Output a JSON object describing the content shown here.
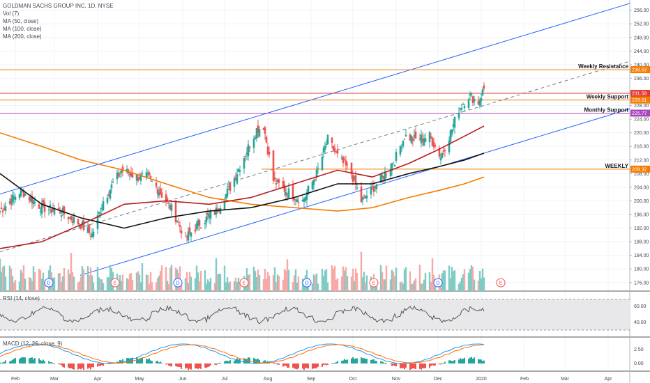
{
  "legend": {
    "title": "GOLDMAN SACHS GROUP INC, 1D, NYSE",
    "vol": "Vol (7)",
    "ma50": "MA (50, close)",
    "ma100": "MA (100, close)",
    "ma200": "MA (200, close)",
    "rsi": "RSI (14, close)",
    "macd": "MACD (12, 26, close, 9)"
  },
  "colors": {
    "up": "#26a69a",
    "down": "#ef5350",
    "up_vol": "#80cbc4",
    "down_vol": "#f7a9a7",
    "ma50": "#b71c1c",
    "ma100": "#111111",
    "ma200": "#f57c00",
    "channel": "#2962ff",
    "resistance": "#f57c00",
    "support": "#e53935",
    "monthly": "#ab47bc",
    "rsi": "#555555",
    "macd": "#2196f3",
    "signal": "#ff6d00"
  },
  "chart_data": {
    "type": "candlestick",
    "instrument": "GOLDMAN SACHS GROUP INC",
    "interval": "1D",
    "exchange": "NYSE",
    "price_axis": {
      "ticks": [
        "256.00",
        "252.00",
        "248.00",
        "244.00",
        "240.00",
        "236.00",
        "232.00",
        "228.00",
        "224.00",
        "220.00",
        "216.00",
        "212.00",
        "208.00",
        "204.00",
        "200.00",
        "196.00",
        "192.00",
        "188.00",
        "184.00",
        "180.00",
        "176.00"
      ],
      "range": [
        173.5,
        259
      ]
    },
    "time_axis": [
      "Feb",
      "Mar",
      "Apr",
      "May",
      "Jun",
      "Jul",
      "Aug",
      "Sep",
      "Oct",
      "Nov",
      "Dec",
      "2020",
      "Feb",
      "Mar",
      "Apr"
    ],
    "price_tags": [
      {
        "label": "238.53",
        "value": 238.53,
        "color": "#f57c00"
      },
      {
        "label": "231.58",
        "value": 231.58,
        "color": "#e53935"
      },
      {
        "label": "229.61",
        "value": 229.61,
        "color": "#f57c00"
      },
      {
        "label": "225.77",
        "value": 225.77,
        "color": "#ab47bc"
      },
      {
        "label": "209.32",
        "value": 209.32,
        "color": "#f57c00"
      }
    ],
    "annotations": [
      {
        "text": "Weekly Resistance",
        "value": 238.53
      },
      {
        "text": "Weekly Support",
        "value": 229.61
      },
      {
        "text": "Monthly Support",
        "value": 225.77
      },
      {
        "text": "WEEKLY",
        "value": 209.32
      }
    ],
    "events": [
      {
        "label": "D",
        "month": "Feb"
      },
      {
        "label": "E",
        "month": "Apr"
      },
      {
        "label": "D",
        "month": "May-Jun"
      },
      {
        "label": "E",
        "month": "Jul"
      },
      {
        "label": "D",
        "month": "Aug-Sep"
      },
      {
        "label": "E",
        "month": "Oct"
      },
      {
        "label": "D",
        "month": "Nov-Dec"
      },
      {
        "label": "E",
        "month": "Jan"
      }
    ],
    "rsi_axis": [
      "60.00",
      "40.00"
    ],
    "macd_axis": [
      "2.50",
      "0.00"
    ],
    "price_path": [
      [
        "2019-01-21",
        197
      ],
      [
        "2019-02-05",
        203
      ],
      [
        "2019-02-20",
        198
      ],
      [
        "2019-03-05",
        197
      ],
      [
        "2019-03-20",
        193
      ],
      [
        "2019-03-28",
        190
      ],
      [
        "2019-04-05",
        200
      ],
      [
        "2019-04-12",
        205
      ],
      [
        "2019-04-18",
        209
      ],
      [
        "2019-04-30",
        207
      ],
      [
        "2019-05-07",
        207
      ],
      [
        "2019-05-15",
        203
      ],
      [
        "2019-05-25",
        197
      ],
      [
        "2019-06-03",
        189
      ],
      [
        "2019-06-12",
        193
      ],
      [
        "2019-06-25",
        197
      ],
      [
        "2019-07-05",
        204
      ],
      [
        "2019-07-15",
        213
      ],
      [
        "2019-07-24",
        221
      ],
      [
        "2019-07-29",
        222
      ],
      [
        "2019-08-05",
        206
      ],
      [
        "2019-08-14",
        203
      ],
      [
        "2019-08-26",
        200
      ],
      [
        "2019-09-05",
        208
      ],
      [
        "2019-09-13",
        218
      ],
      [
        "2019-09-20",
        213
      ],
      [
        "2019-09-30",
        208
      ],
      [
        "2019-10-07",
        200
      ],
      [
        "2019-10-14",
        203
      ],
      [
        "2019-10-22",
        207
      ],
      [
        "2019-10-31",
        212
      ],
      [
        "2019-11-07",
        219
      ],
      [
        "2019-11-15",
        218
      ],
      [
        "2019-11-25",
        219
      ],
      [
        "2019-12-03",
        213
      ],
      [
        "2019-12-10",
        220
      ],
      [
        "2019-12-16",
        227
      ],
      [
        "2019-12-23",
        231
      ],
      [
        "2019-12-30",
        229
      ],
      [
        "2020-01-03",
        233
      ]
    ],
    "ma50_path": [
      [
        "2019-01-21",
        186
      ],
      [
        "2019-02-20",
        188
      ],
      [
        "2019-03-20",
        193
      ],
      [
        "2019-04-20",
        199
      ],
      [
        "2019-05-20",
        200
      ],
      [
        "2019-06-20",
        199
      ],
      [
        "2019-07-20",
        201
      ],
      [
        "2019-08-20",
        205
      ],
      [
        "2019-09-20",
        209
      ],
      [
        "2019-10-15",
        207
      ],
      [
        "2019-11-10",
        211
      ],
      [
        "2019-12-01",
        215
      ],
      [
        "2019-12-20",
        219
      ],
      [
        "2020-01-03",
        222
      ]
    ],
    "ma100_path": [
      [
        "2019-01-21",
        208
      ],
      [
        "2019-02-20",
        199
      ],
      [
        "2019-03-20",
        195
      ],
      [
        "2019-04-20",
        192
      ],
      [
        "2019-05-20",
        195
      ],
      [
        "2019-06-20",
        197
      ],
      [
        "2019-07-20",
        198
      ],
      [
        "2019-08-20",
        201
      ],
      [
        "2019-09-20",
        205
      ],
      [
        "2019-10-15",
        205
      ],
      [
        "2019-11-10",
        208
      ],
      [
        "2019-12-01",
        210
      ],
      [
        "2019-12-20",
        212
      ],
      [
        "2020-01-03",
        214
      ]
    ],
    "ma200_path": [
      [
        "2019-01-21",
        220
      ],
      [
        "2019-02-20",
        216
      ],
      [
        "2019-03-20",
        212
      ],
      [
        "2019-04-20",
        209
      ],
      [
        "2019-05-20",
        205
      ],
      [
        "2019-06-20",
        201
      ],
      [
        "2019-07-20",
        199
      ],
      [
        "2019-08-20",
        198
      ],
      [
        "2019-09-20",
        197
      ],
      [
        "2019-10-15",
        198
      ],
      [
        "2019-11-10",
        201
      ],
      [
        "2019-12-01",
        203
      ],
      [
        "2019-12-20",
        205
      ],
      [
        "2020-01-03",
        207
      ]
    ]
  }
}
